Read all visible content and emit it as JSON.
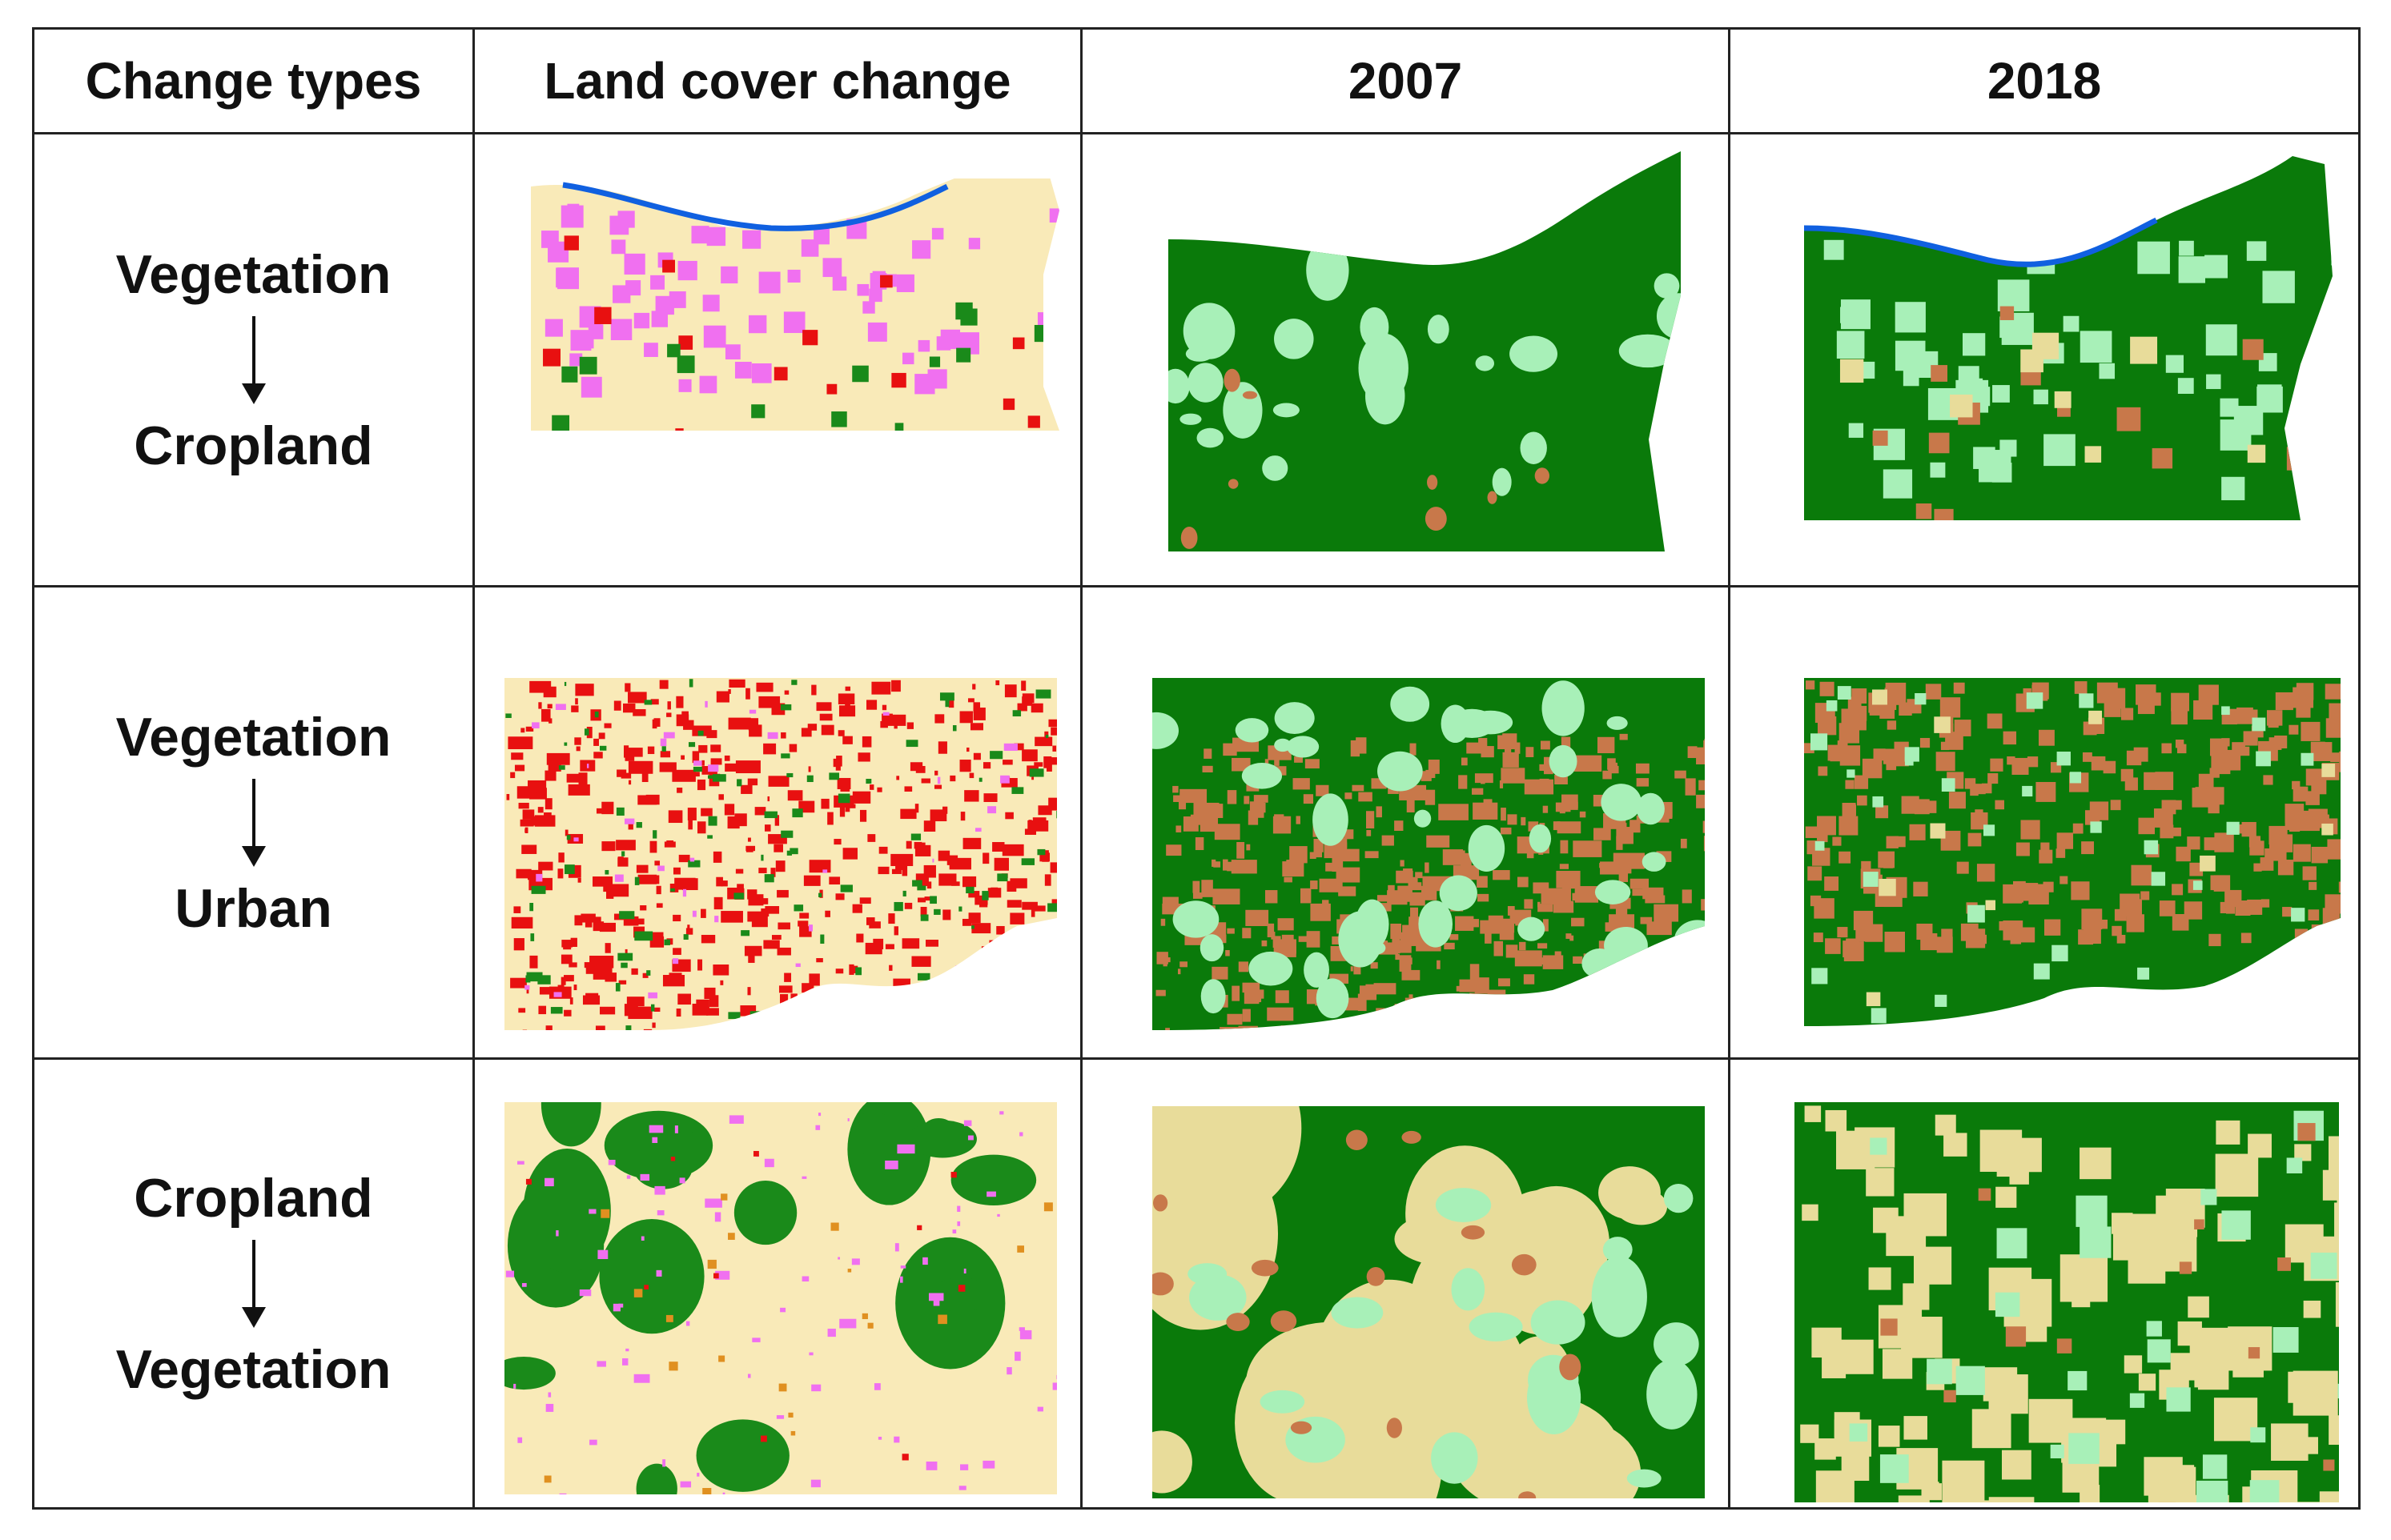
{
  "headers": {
    "change_types": "Change types",
    "land_cover_change": "Land cover change",
    "year_a": "2007",
    "year_b": "2018"
  },
  "rows": [
    {
      "from": "Vegetation",
      "to": "Cropland"
    },
    {
      "from": "Vegetation",
      "to": "Urban"
    },
    {
      "from": "Cropland",
      "to": "Vegetation"
    }
  ],
  "colors": {
    "forest": "#0a7a0a",
    "light_green": "#a8f0b8",
    "urban": "#c8784a",
    "cropland_tan": "#e8dc9a",
    "no_change_bg": "#f9eab8",
    "change_magenta": "#f070f0",
    "change_red": "#e81010",
    "change_green": "#1a8a1a",
    "water_blue": "#1060e0",
    "change_orange": "#e09020"
  }
}
